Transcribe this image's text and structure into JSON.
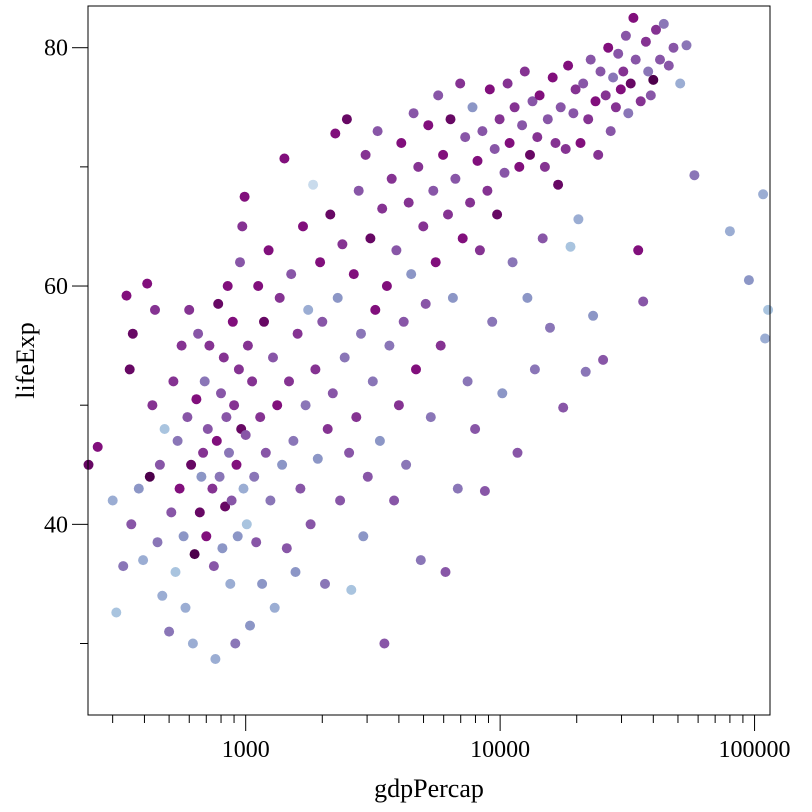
{
  "chart_data": {
    "type": "scatter",
    "title": "",
    "xlabel": "gdpPercap",
    "ylabel": "lifeExp",
    "x_scale": "log",
    "xlim": [
      240,
      115000
    ],
    "ylim": [
      24,
      83.5
    ],
    "x_major_ticks": [
      {
        "value": 1000,
        "label": "1000"
      },
      {
        "value": 10000,
        "label": "10000"
      },
      {
        "value": 100000,
        "label": "100000"
      }
    ],
    "x_minor_ticks": [
      300,
      400,
      500,
      600,
      700,
      800,
      900,
      2000,
      3000,
      4000,
      5000,
      6000,
      7000,
      8000,
      9000,
      20000,
      30000,
      40000,
      50000,
      60000,
      70000,
      80000,
      90000
    ],
    "y_major_ticks": [
      {
        "value": 40,
        "label": "40"
      },
      {
        "value": 60,
        "label": "60"
      },
      {
        "value": 80,
        "label": "80"
      }
    ],
    "y_minor_ticks": [
      30,
      50,
      70
    ],
    "grid": false,
    "legend": "none",
    "color_scale": [
      "#e8f1f8",
      "#a9c4df",
      "#8c96c6",
      "#8856a7",
      "#810f7c",
      "#4d004b"
    ],
    "points": [
      [
        241,
        45.0,
        0.9
      ],
      [
        262,
        46.5,
        0.8
      ],
      [
        300,
        42.0,
        0.3
      ],
      [
        310,
        32.6,
        0.2
      ],
      [
        330,
        36.5,
        0.5
      ],
      [
        340,
        59.2,
        0.8
      ],
      [
        350,
        53.0,
        0.9
      ],
      [
        355,
        40.0,
        0.6
      ],
      [
        360,
        56.0,
        0.9
      ],
      [
        380,
        43.0,
        0.4
      ],
      [
        395,
        37.0,
        0.3
      ],
      [
        410,
        60.2,
        0.8
      ],
      [
        420,
        44.0,
        1.0
      ],
      [
        430,
        50.0,
        0.7
      ],
      [
        440,
        58.0,
        0.7
      ],
      [
        450,
        38.5,
        0.5
      ],
      [
        460,
        45.0,
        0.6
      ],
      [
        470,
        34.0,
        0.3
      ],
      [
        480,
        48.0,
        0.2
      ],
      [
        500,
        31.0,
        0.5
      ],
      [
        510,
        41.0,
        0.6
      ],
      [
        520,
        52.0,
        0.7
      ],
      [
        530,
        36.0,
        0.2
      ],
      [
        540,
        47.0,
        0.5
      ],
      [
        550,
        43.0,
        0.8
      ],
      [
        560,
        55.0,
        0.7
      ],
      [
        570,
        39.0,
        0.4
      ],
      [
        580,
        33.0,
        0.3
      ],
      [
        590,
        49.0,
        0.6
      ],
      [
        600,
        58.0,
        0.7
      ],
      [
        610,
        45.0,
        0.9
      ],
      [
        620,
        30.0,
        0.3
      ],
      [
        630,
        37.5,
        1.0
      ],
      [
        640,
        50.5,
        0.8
      ],
      [
        650,
        56.0,
        0.6
      ],
      [
        660,
        41.0,
        0.9
      ],
      [
        670,
        44.0,
        0.4
      ],
      [
        680,
        46.0,
        0.7
      ],
      [
        690,
        52.0,
        0.5
      ],
      [
        700,
        39.0,
        0.8
      ],
      [
        710,
        48.0,
        0.6
      ],
      [
        720,
        55.0,
        0.7
      ],
      [
        730,
        23.8,
        0.4
      ],
      [
        740,
        43.0,
        0.7
      ],
      [
        750,
        36.5,
        0.6
      ],
      [
        760,
        28.7,
        0.3
      ],
      [
        770,
        47.0,
        0.8
      ],
      [
        780,
        58.5,
        0.9
      ],
      [
        790,
        44.0,
        0.5
      ],
      [
        800,
        51.0,
        0.6
      ],
      [
        810,
        38.0,
        0.4
      ],
      [
        820,
        54.0,
        0.7
      ],
      [
        830,
        41.5,
        0.9
      ],
      [
        840,
        49.0,
        0.6
      ],
      [
        850,
        60.0,
        0.8
      ],
      [
        860,
        46.0,
        0.5
      ],
      [
        870,
        35.0,
        0.3
      ],
      [
        880,
        42.0,
        0.6
      ],
      [
        890,
        57.0,
        0.8
      ],
      [
        900,
        50.0,
        0.7
      ],
      [
        910,
        30.0,
        0.5
      ],
      [
        920,
        45.0,
        0.8
      ],
      [
        930,
        39.0,
        0.4
      ],
      [
        940,
        53.0,
        0.7
      ],
      [
        950,
        62.0,
        0.6
      ],
      [
        960,
        48.0,
        0.9
      ],
      [
        970,
        65.0,
        0.7
      ],
      [
        980,
        43.0,
        0.3
      ],
      [
        990,
        67.5,
        0.8
      ],
      [
        1000,
        47.5,
        0.6
      ],
      [
        1010,
        40.0,
        0.2
      ],
      [
        1020,
        55.0,
        0.7
      ],
      [
        1040,
        31.5,
        0.4
      ],
      [
        1060,
        52.0,
        0.7
      ],
      [
        1080,
        44.0,
        0.5
      ],
      [
        1100,
        38.5,
        0.6
      ],
      [
        1120,
        60.0,
        0.8
      ],
      [
        1140,
        49.0,
        0.7
      ],
      [
        1160,
        35.0,
        0.4
      ],
      [
        1180,
        57.0,
        0.9
      ],
      [
        1200,
        46.0,
        0.6
      ],
      [
        1230,
        63.0,
        0.8
      ],
      [
        1250,
        42.0,
        0.5
      ],
      [
        1280,
        54.0,
        0.6
      ],
      [
        1300,
        33.0,
        0.3
      ],
      [
        1330,
        50.0,
        0.8
      ],
      [
        1360,
        59.0,
        0.7
      ],
      [
        1390,
        45.0,
        0.4
      ],
      [
        1420,
        70.7,
        0.8
      ],
      [
        1450,
        38.0,
        0.6
      ],
      [
        1480,
        52.0,
        0.7
      ],
      [
        1510,
        61.0,
        0.6
      ],
      [
        1540,
        47.0,
        0.5
      ],
      [
        1570,
        36.0,
        0.4
      ],
      [
        1600,
        56.0,
        0.7
      ],
      [
        1640,
        43.0,
        0.6
      ],
      [
        1680,
        65.0,
        0.8
      ],
      [
        1720,
        50.0,
        0.5
      ],
      [
        1760,
        58.0,
        0.3
      ],
      [
        1800,
        40.0,
        0.6
      ],
      [
        1840,
        68.5,
        0.1
      ],
      [
        1880,
        53.0,
        0.7
      ],
      [
        1920,
        45.5,
        0.4
      ],
      [
        1960,
        62.0,
        0.8
      ],
      [
        2000,
        57.0,
        0.6
      ],
      [
        2050,
        35.0,
        0.5
      ],
      [
        2100,
        48.0,
        0.7
      ],
      [
        2150,
        66.0,
        0.9
      ],
      [
        2200,
        51.0,
        0.6
      ],
      [
        2250,
        72.8,
        0.8
      ],
      [
        2300,
        59.0,
        0.4
      ],
      [
        2350,
        42.0,
        0.6
      ],
      [
        2400,
        63.5,
        0.7
      ],
      [
        2450,
        54.0,
        0.5
      ],
      [
        2500,
        74.0,
        0.9
      ],
      [
        2550,
        46.0,
        0.6
      ],
      [
        2600,
        34.5,
        0.2
      ],
      [
        2660,
        61.0,
        0.8
      ],
      [
        2720,
        49.0,
        0.7
      ],
      [
        2780,
        68.0,
        0.6
      ],
      [
        2840,
        56.0,
        0.5
      ],
      [
        2900,
        39.0,
        0.4
      ],
      [
        2960,
        71.0,
        0.7
      ],
      [
        3020,
        44.0,
        0.6
      ],
      [
        3090,
        64.0,
        0.9
      ],
      [
        3160,
        52.0,
        0.5
      ],
      [
        3230,
        58.0,
        0.8
      ],
      [
        3300,
        73.0,
        0.6
      ],
      [
        3370,
        47.0,
        0.4
      ],
      [
        3440,
        66.5,
        0.7
      ],
      [
        3510,
        30.0,
        0.6
      ],
      [
        3590,
        60.0,
        0.8
      ],
      [
        3670,
        55.0,
        0.5
      ],
      [
        3750,
        69.0,
        0.7
      ],
      [
        3830,
        42.0,
        0.6
      ],
      [
        3910,
        63.0,
        0.6
      ],
      [
        4000,
        50.0,
        0.7
      ],
      [
        4090,
        72.0,
        0.8
      ],
      [
        4180,
        57.0,
        0.6
      ],
      [
        4270,
        45.0,
        0.5
      ],
      [
        4370,
        67.0,
        0.7
      ],
      [
        4470,
        61.0,
        0.4
      ],
      [
        4570,
        74.5,
        0.6
      ],
      [
        4670,
        53.0,
        0.8
      ],
      [
        4770,
        70.0,
        0.7
      ],
      [
        4880,
        37.0,
        0.5
      ],
      [
        4990,
        65.0,
        0.7
      ],
      [
        5100,
        58.5,
        0.6
      ],
      [
        5220,
        73.5,
        0.8
      ],
      [
        5340,
        49.0,
        0.5
      ],
      [
        5460,
        68.0,
        0.6
      ],
      [
        5580,
        62.0,
        0.8
      ],
      [
        5710,
        76.0,
        0.6
      ],
      [
        5840,
        55.0,
        0.7
      ],
      [
        5970,
        71.0,
        0.8
      ],
      [
        6100,
        36.0,
        0.6
      ],
      [
        6240,
        66.0,
        0.7
      ],
      [
        6380,
        74.0,
        0.9
      ],
      [
        6520,
        59.0,
        0.4
      ],
      [
        6670,
        69.0,
        0.6
      ],
      [
        6820,
        43.0,
        0.5
      ],
      [
        6970,
        77.0,
        0.7
      ],
      [
        7130,
        64.0,
        0.8
      ],
      [
        7290,
        72.5,
        0.6
      ],
      [
        7450,
        52.0,
        0.5
      ],
      [
        7620,
        67.0,
        0.7
      ],
      [
        7790,
        75.0,
        0.4
      ],
      [
        7970,
        48.0,
        0.6
      ],
      [
        8150,
        70.5,
        0.8
      ],
      [
        8330,
        63.0,
        0.7
      ],
      [
        8520,
        73.0,
        0.6
      ],
      [
        8710,
        42.8,
        0.6
      ],
      [
        8910,
        68.0,
        0.7
      ],
      [
        9110,
        76.5,
        0.8
      ],
      [
        9310,
        57.0,
        0.5
      ],
      [
        9520,
        71.5,
        0.6
      ],
      [
        9730,
        66.0,
        0.9
      ],
      [
        9950,
        74.0,
        0.7
      ],
      [
        10200,
        51.0,
        0.4
      ],
      [
        10400,
        69.5,
        0.6
      ],
      [
        10700,
        77.0,
        0.7
      ],
      [
        10900,
        72.0,
        0.8
      ],
      [
        11200,
        62.0,
        0.5
      ],
      [
        11400,
        75.0,
        0.7
      ],
      [
        11700,
        46.0,
        0.6
      ],
      [
        11900,
        70.0,
        0.8
      ],
      [
        12200,
        73.5,
        0.6
      ],
      [
        12500,
        78.0,
        0.7
      ],
      [
        12800,
        59.0,
        0.4
      ],
      [
        13100,
        71.0,
        0.9
      ],
      [
        13400,
        75.5,
        0.6
      ],
      [
        13700,
        53.0,
        0.5
      ],
      [
        14000,
        72.5,
        0.7
      ],
      [
        14300,
        76.0,
        0.8
      ],
      [
        14700,
        64.0,
        0.6
      ],
      [
        15000,
        70.0,
        0.7
      ],
      [
        15400,
        74.0,
        0.6
      ],
      [
        15700,
        56.5,
        0.5
      ],
      [
        16100,
        77.5,
        0.8
      ],
      [
        16500,
        72.0,
        0.7
      ],
      [
        16900,
        68.5,
        0.9
      ],
      [
        17300,
        75.0,
        0.6
      ],
      [
        17700,
        49.8,
        0.6
      ],
      [
        18100,
        71.5,
        0.7
      ],
      [
        18500,
        78.5,
        0.8
      ],
      [
        18900,
        63.3,
        0.2
      ],
      [
        19400,
        74.5,
        0.6
      ],
      [
        19800,
        76.5,
        0.7
      ],
      [
        20300,
        65.6,
        0.3
      ],
      [
        20700,
        72.0,
        0.8
      ],
      [
        21200,
        77.0,
        0.6
      ],
      [
        21700,
        52.8,
        0.5
      ],
      [
        22200,
        74.0,
        0.7
      ],
      [
        22700,
        79.0,
        0.6
      ],
      [
        23200,
        57.5,
        0.4
      ],
      [
        23700,
        75.5,
        0.8
      ],
      [
        24300,
        71.0,
        0.7
      ],
      [
        24800,
        78.0,
        0.6
      ],
      [
        25400,
        53.8,
        0.6
      ],
      [
        26000,
        76.0,
        0.7
      ],
      [
        26600,
        80.0,
        0.8
      ],
      [
        27200,
        73.0,
        0.6
      ],
      [
        27800,
        77.5,
        0.5
      ],
      [
        28500,
        75.0,
        0.7
      ],
      [
        29100,
        79.5,
        0.6
      ],
      [
        29800,
        76.5,
        0.8
      ],
      [
        30500,
        78.0,
        0.7
      ],
      [
        31200,
        81.0,
        0.6
      ],
      [
        31900,
        74.5,
        0.5
      ],
      [
        32600,
        77.0,
        0.9
      ],
      [
        33400,
        82.5,
        0.8
      ],
      [
        34100,
        79.0,
        0.6
      ],
      [
        34900,
        63.0,
        0.8
      ],
      [
        35700,
        75.5,
        0.7
      ],
      [
        36500,
        58.7,
        0.6
      ],
      [
        37400,
        80.5,
        0.7
      ],
      [
        38200,
        78.0,
        0.5
      ],
      [
        39100,
        76.0,
        0.6
      ],
      [
        40000,
        77.3,
        1.0
      ],
      [
        41000,
        81.5,
        0.7
      ],
      [
        42500,
        79.0,
        0.6
      ],
      [
        44000,
        82.0,
        0.5
      ],
      [
        46000,
        78.5,
        0.6
      ],
      [
        48000,
        80.0,
        0.6
      ],
      [
        51000,
        77.0,
        0.3
      ],
      [
        54000,
        80.2,
        0.5
      ],
      [
        58000,
        69.3,
        0.5
      ],
      [
        80000,
        64.6,
        0.3
      ],
      [
        95000,
        60.5,
        0.4
      ],
      [
        108000,
        67.7,
        0.3
      ],
      [
        110000,
        55.6,
        0.3
      ],
      [
        113000,
        58.0,
        0.2
      ]
    ]
  }
}
